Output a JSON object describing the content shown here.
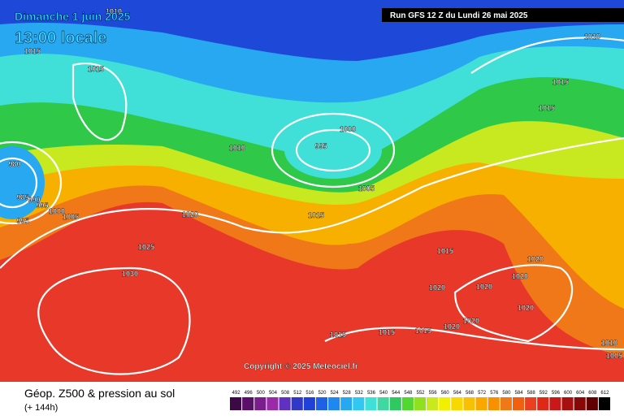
{
  "header": {
    "date": "Dimanche 1 juin 2025",
    "time": "13:00 locale",
    "run": "Run GFS 12 Z du Lundi 26 mai 2025"
  },
  "copyright": "Copyright © 2025 Meteociel.fr",
  "footer": {
    "title": "Géop. Z500 & pression au sol",
    "subtitle": "(+ 144h)"
  },
  "legend": {
    "scale": [
      492,
      496,
      500,
      504,
      508,
      512,
      516,
      520,
      524,
      528,
      532,
      536,
      540,
      544,
      548,
      552,
      556,
      560,
      564,
      568,
      572,
      576,
      580,
      584,
      588,
      592,
      596,
      600,
      604,
      608,
      612
    ]
  },
  "isobar_labels": [
    1010,
    1015,
    1015,
    1010,
    1015,
    1015,
    1000,
    995,
    1010,
    980,
    1005,
    985,
    990,
    995,
    1000,
    1005,
    995,
    1020,
    1015,
    1025,
    1015,
    1020,
    1030,
    1020,
    1020,
    1020,
    1020,
    1020,
    1020,
    1015,
    1015,
    1015,
    1010,
    1005
  ]
}
